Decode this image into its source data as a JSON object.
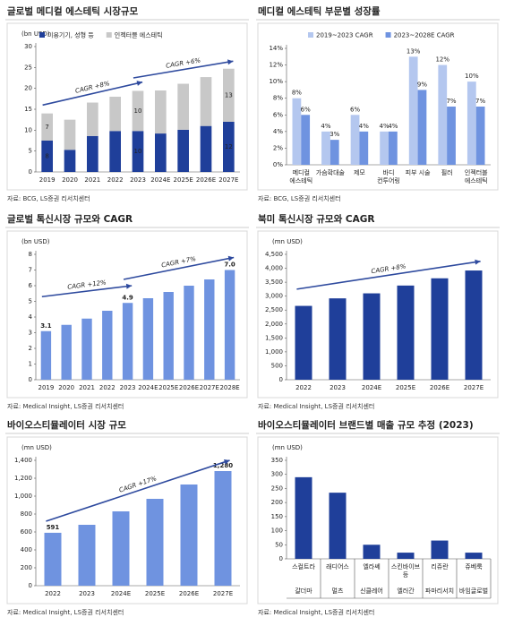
{
  "chart_data": [
    {
      "type": "bar",
      "stacked": true,
      "title": "글로벌 메디컬 에스테틱 시장규모",
      "ylabel": "(bn USD)",
      "categories": [
        "2019",
        "2020",
        "2021",
        "2022",
        "2023",
        "2024E",
        "2025E",
        "2026E",
        "2027E"
      ],
      "series": [
        {
          "name": "미용기기, 성형 등",
          "color": "#1f3f9a",
          "values": [
            7.5,
            5.3,
            8.6,
            9.8,
            9.8,
            9.2,
            10.1,
            11,
            12
          ],
          "value_labels": [
            "8",
            null,
            null,
            null,
            "10",
            null,
            null,
            null,
            "12"
          ]
        },
        {
          "name": "인젝터블 에스테틱",
          "color": "#c8c8c8",
          "values": [
            6.5,
            7.2,
            8,
            8.2,
            9.6,
            10.3,
            11,
            11.7,
            12.7
          ],
          "value_labels": [
            "7",
            null,
            null,
            null,
            "10",
            null,
            null,
            null,
            "13"
          ]
        }
      ],
      "ylim": [
        0,
        30
      ],
      "yticks": [
        0,
        5,
        10,
        15,
        20,
        25,
        30
      ],
      "legend": "top-left",
      "annotations": [
        "CAGR +8%",
        "CAGR +6%"
      ],
      "source": "자료: BCG, LS증권 리서치센터"
    },
    {
      "type": "bar",
      "title": "메디컬 에스테틱 부문별 성장률",
      "categories": [
        "메디컬\n에스테틱",
        "가슴확대술",
        "제모",
        "바디\n컨투어링",
        "피부 시술",
        "필러",
        "인젝터블\n에스테틱"
      ],
      "series": [
        {
          "name": "2019~2023 CAGR",
          "color": "#b4c7ef",
          "values": [
            8,
            4,
            6,
            4,
            13,
            12,
            10
          ],
          "value_labels": [
            "8%",
            "4%",
            "6%",
            "4%",
            "13%",
            "12%",
            "10%"
          ]
        },
        {
          "name": "2023~2028E CAGR",
          "color": "#6f93e0",
          "values": [
            6,
            3,
            4,
            4,
            9,
            7,
            7
          ],
          "value_labels": [
            "6%",
            "3%",
            "4%",
            "4%",
            "9%",
            "7%",
            "7%"
          ]
        }
      ],
      "ylim": [
        0,
        14
      ],
      "yticks": [
        {
          "value": 0,
          "label": "0%"
        },
        {
          "value": 2,
          "label": "2%"
        },
        {
          "value": 4,
          "label": "4%"
        },
        {
          "value": 6,
          "label": "6%"
        },
        {
          "value": 8,
          "label": "8%"
        },
        {
          "value": 10,
          "label": "10%"
        },
        {
          "value": 12,
          "label": "12%"
        },
        {
          "value": 14,
          "label": "14%"
        }
      ],
      "legend": "top-center",
      "source": "자료: BCG, LS증권 리서치센터"
    },
    {
      "type": "bar",
      "title": "글로벌 톡신시장 규모와 CAGR",
      "ylabel": "(bn USD)",
      "categories": [
        "2019",
        "2020",
        "2021",
        "2022",
        "2023",
        "2024E",
        "2025E",
        "2026E",
        "2027E",
        "2028E"
      ],
      "series": [
        {
          "color": "#6f93e0",
          "values": [
            3.1,
            3.5,
            3.9,
            4.4,
            4.9,
            5.2,
            5.6,
            6.0,
            6.4,
            7.0
          ],
          "value_labels": [
            "3.1",
            null,
            null,
            null,
            "4.9",
            null,
            null,
            null,
            null,
            "7.0"
          ]
        }
      ],
      "ylim": [
        0,
        8
      ],
      "yticks": [
        0,
        1,
        2,
        3,
        4,
        5,
        6,
        7,
        8
      ],
      "annotations": [
        "CAGR +12%",
        "CAGR +7%"
      ],
      "source": "자료: Medical Insight, LS증권 리서치센터"
    },
    {
      "type": "bar",
      "title": "북미 톡신시장 규모와 CAGR",
      "ylabel": "(mn USD)",
      "categories": [
        "2022",
        "2023",
        "2024E",
        "2025E",
        "2026E",
        "2027E"
      ],
      "series": [
        {
          "color": "#1f3f9a",
          "values": [
            2650,
            2920,
            3100,
            3380,
            3640,
            3920
          ]
        }
      ],
      "ylim": [
        0,
        4500
      ],
      "yticks": [
        0,
        500,
        {
          "value": 1000,
          "label": "1,000"
        },
        {
          "value": 1500,
          "label": "1,500"
        },
        {
          "value": 2000,
          "label": "2,000"
        },
        {
          "value": 2500,
          "label": "2,500"
        },
        {
          "value": 3000,
          "label": "3,000"
        },
        {
          "value": 3500,
          "label": "3,500"
        },
        {
          "value": 4000,
          "label": "4,000"
        },
        {
          "value": 4500,
          "label": "4,500"
        }
      ],
      "annotations": [
        "CAGR +8%"
      ],
      "source": "자료: Medical Insight, LS증권 리서치센터"
    },
    {
      "type": "bar",
      "title": "바이오스티뮬레이터 시장 규모",
      "ylabel": "(mn USD)",
      "categories": [
        "2022",
        "2023",
        "2024E",
        "2025E",
        "2026E",
        "2027E"
      ],
      "series": [
        {
          "color": "#6f93e0",
          "values": [
            591,
            680,
            830,
            970,
            1130,
            1280
          ],
          "value_labels": [
            "591",
            null,
            null,
            null,
            null,
            "1,280"
          ]
        }
      ],
      "ylim": [
        0,
        1400
      ],
      "yticks": [
        0,
        200,
        400,
        600,
        800,
        {
          "value": 1000,
          "label": "1,000"
        },
        {
          "value": 1200,
          "label": "1,200"
        },
        {
          "value": 1400,
          "label": "1,400"
        }
      ],
      "annotations": [
        "CAGR +17%"
      ],
      "source": "자료: Medical Insight, LS증권 리서치센터"
    },
    {
      "type": "bar",
      "title": "바이오스티뮬레이터 브랜드별 매출 규모 추정 (2023)",
      "ylabel": "(mn USD)",
      "categories": [
        "스컬트라",
        "래디어스",
        "엘라쎄",
        "스킨바이브\n등",
        "리쥬란",
        "쥬베룩"
      ],
      "companies": [
        "갈더마",
        "멀츠",
        "신클레어",
        "엘러간",
        "파마리서치",
        "바임글로벌"
      ],
      "series": [
        {
          "color": "#1f3f9a",
          "values": [
            290,
            235,
            50,
            22,
            65,
            22
          ]
        }
      ],
      "ylim": [
        0,
        350
      ],
      "yticks": [
        0,
        50,
        100,
        150,
        200,
        250,
        300,
        350
      ],
      "source": "자료: Medical Insight, LS증권 리서치센터"
    }
  ]
}
